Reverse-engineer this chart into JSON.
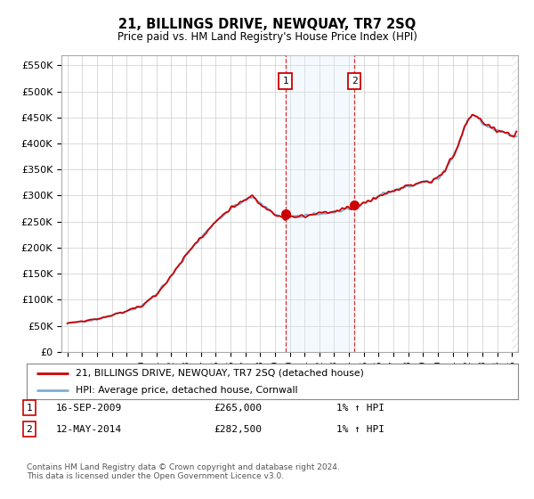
{
  "title": "21, BILLINGS DRIVE, NEWQUAY, TR7 2SQ",
  "subtitle": "Price paid vs. HM Land Registry's House Price Index (HPI)",
  "ylabel_ticks": [
    "£0",
    "£50K",
    "£100K",
    "£150K",
    "£200K",
    "£250K",
    "£300K",
    "£350K",
    "£400K",
    "£450K",
    "£500K",
    "£550K"
  ],
  "ytick_values": [
    0,
    50000,
    100000,
    150000,
    200000,
    250000,
    300000,
    350000,
    400000,
    450000,
    500000,
    550000
  ],
  "xmin": 1994.6,
  "xmax": 2025.4,
  "ymin": 0,
  "ymax": 570000,
  "transaction1_date": 2009.71,
  "transaction1_price": 265000,
  "transaction1_label": "1",
  "transaction2_date": 2014.36,
  "transaction2_price": 282500,
  "transaction2_label": "2",
  "legend_line1": "21, BILLINGS DRIVE, NEWQUAY, TR7 2SQ (detached house)",
  "legend_line2": "HPI: Average price, detached house, Cornwall",
  "hpi_color": "#7bafd4",
  "price_color": "#cc0000",
  "bg_color": "#ffffff",
  "grid_color": "#cccccc",
  "shade_color": "#ddeeff",
  "hatch_color": "#cccccc",
  "footnote": "Contains HM Land Registry data © Crown copyright and database right 2024.\nThis data is licensed under the Open Government Licence v3.0."
}
